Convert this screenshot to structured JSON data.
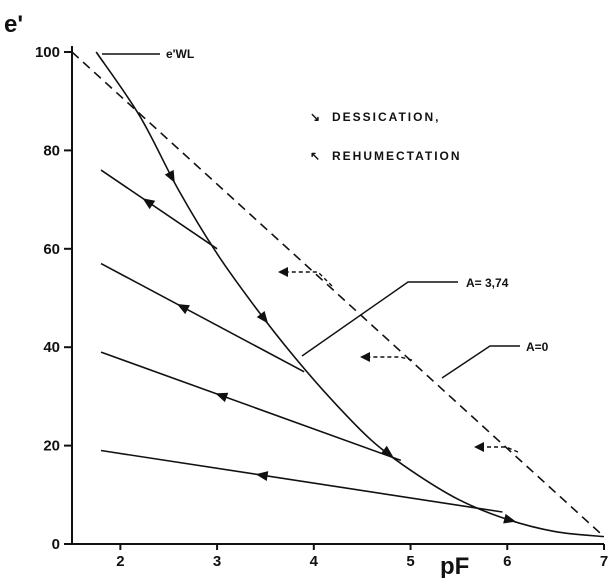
{
  "chart_data": {
    "type": "line",
    "xlabel": "pF",
    "ylabel": "e'",
    "xlim": [
      1.5,
      7
    ],
    "ylim": [
      0,
      100
    ],
    "x_ticks": [
      2,
      3,
      4,
      5,
      6,
      7
    ],
    "y_ticks": [
      0,
      20,
      40,
      60,
      80,
      100
    ],
    "legend": [
      {
        "symbol": "↘",
        "label": "DESSICATION,"
      },
      {
        "symbol": "↖",
        "label": "REHUMECTATION"
      }
    ],
    "annotations": {
      "ewl": "e'WL",
      "curve_a": "A= 3,74",
      "curve_a0": "A=0"
    },
    "series": [
      {
        "x": [
          1.75,
          2.2,
          2.6,
          3.0,
          3.4,
          3.8,
          4.2,
          4.6,
          5.0,
          5.5,
          6.0,
          6.5,
          7.0
        ],
        "y": [
          100,
          87,
          72,
          59,
          48,
          38,
          29,
          21,
          15,
          9,
          5,
          2.5,
          1.5
        ]
      },
      {
        "x": [
          1.5,
          7.0
        ],
        "y": [
          100,
          1.5
        ]
      },
      {
        "x": [
          1.8,
          3.0
        ],
        "y": [
          76,
          60
        ]
      },
      {
        "x": [
          1.8,
          3.9
        ],
        "y": [
          57,
          35
        ]
      },
      {
        "x": [
          1.8,
          4.9
        ],
        "y": [
          39,
          17
        ]
      },
      {
        "x": [
          1.8,
          5.95
        ],
        "y": [
          19,
          6.5
        ]
      }
    ]
  }
}
